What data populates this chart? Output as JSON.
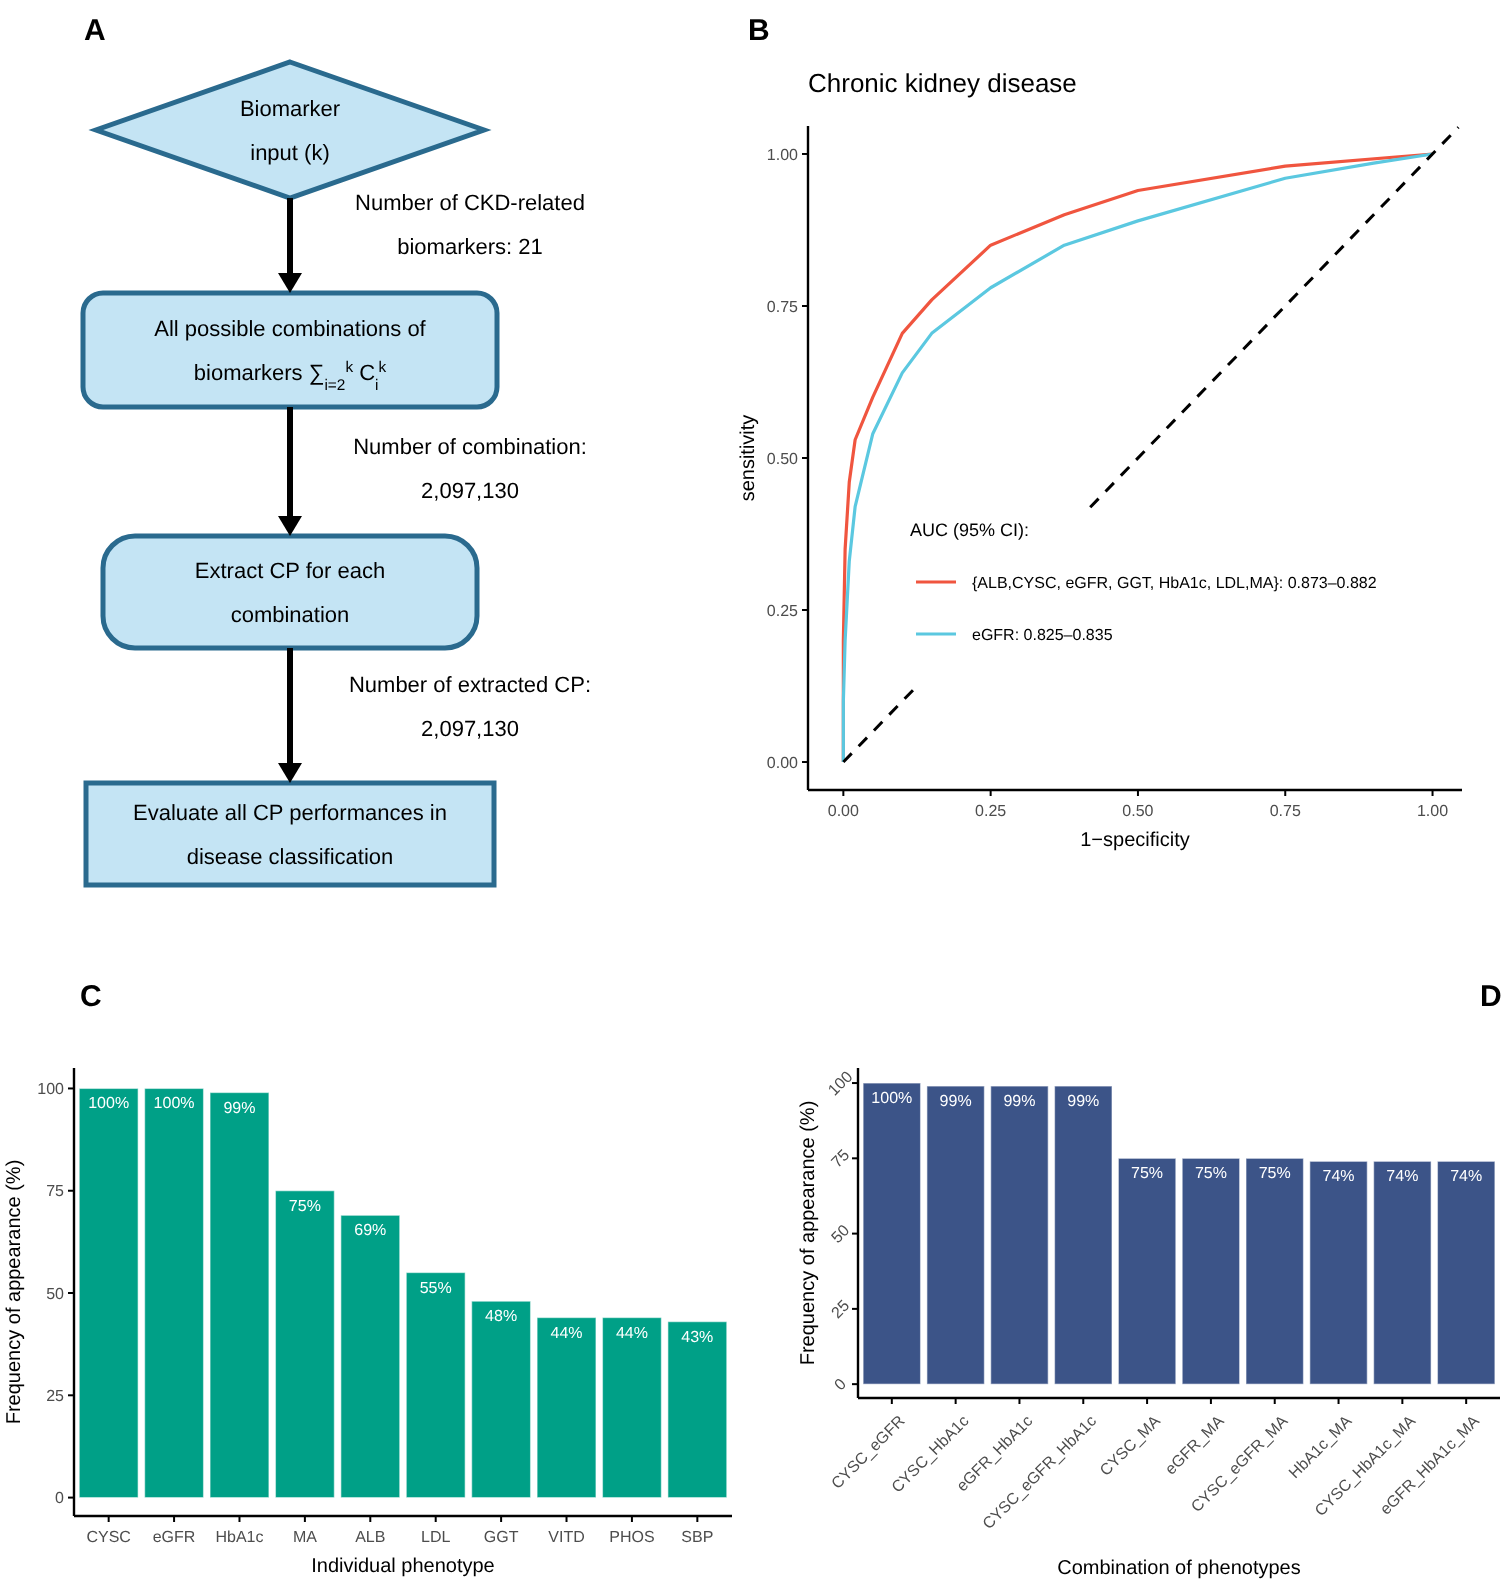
{
  "chart_data": [
    {
      "type": "other",
      "annotations": [
        "A",
        "Biomarker input (k)",
        "Number of CKD-related biomarkers: 21",
        "All possible combinations of biomarkers ∑$_{i=2}$$^{k}$ C$_{i}$$^{k}$",
        "Number of combination: 2,097,130",
        "Extract CP for each combination",
        "Number of extracted CP: 2,097,130",
        "Evaluate all CP performances in disease classification"
      ]
    },
    {
      "type": "line",
      "title": "Chronic kidney disease",
      "annotations": [
        "B"
      ],
      "xlabel": "1−specificity",
      "ylabel": "sensitivity",
      "xlim": [
        -0.06,
        1.05
      ],
      "ylim": [
        -0.046,
        1.046
      ],
      "xticks": [
        {
          "value": 0,
          "label": "0.00"
        },
        {
          "value": 0.25,
          "label": "0.25"
        },
        {
          "value": 0.5,
          "label": "0.50"
        },
        {
          "value": 0.75,
          "label": "0.75"
        },
        {
          "value": 1,
          "label": "1.00"
        }
      ],
      "yticks": [
        {
          "value": 0,
          "label": "0.00"
        },
        {
          "value": 0.25,
          "label": "0.25"
        },
        {
          "value": 0.5,
          "label": "0.50"
        },
        {
          "value": 0.75,
          "label": "0.75"
        },
        {
          "value": 1,
          "label": "1.00"
        }
      ],
      "legend": "bottom",
      "legend_title": "AUC (95% CI):",
      "series": [
        {
          "name": "{ALB,CYSC, eGFR, GGT, HbA1c, LDL,MA}: 0.873–0.882",
          "color": "#f0553f",
          "x": [
            0,
            0,
            0.003,
            0.01,
            0.02,
            0.05,
            0.1,
            0.15,
            0.25,
            0.375,
            0.5,
            0.75,
            1
          ],
          "values": [
            0,
            0.2,
            0.35,
            0.46,
            0.53,
            0.6,
            0.705,
            0.76,
            0.85,
            0.9,
            0.94,
            0.98,
            1
          ]
        },
        {
          "name": "eGFR: 0.825–0.835",
          "color": "#5bc8e0",
          "x": [
            0,
            0,
            0.003,
            0.01,
            0.02,
            0.05,
            0.1,
            0.15,
            0.25,
            0.375,
            0.5,
            0.75,
            0.9,
            1
          ],
          "values": [
            0,
            0.1,
            0.2,
            0.33,
            0.42,
            0.54,
            0.64,
            0.705,
            0.78,
            0.85,
            0.89,
            0.96,
            0.985,
            1
          ]
        },
        {
          "color": "#000000",
          "line_style": "dashed",
          "x": [
            0,
            0.127,
            0.2,
            0.419,
            1.044
          ],
          "values": [
            0,
            0.127,
            null,
            0.419,
            1.044
          ]
        }
      ]
    },
    {
      "type": "bar",
      "annotations": [
        "C"
      ],
      "xlabel": "Individual phenotype",
      "ylabel": "Frequency of appearance (%)",
      "categories": [
        "CYSC",
        "eGFR",
        "HbA1c",
        "MA",
        "ALB",
        "LDL",
        "GGT",
        "VITD",
        "PHOS",
        "SBP"
      ],
      "values": [
        100,
        100,
        99,
        75,
        69,
        55,
        48,
        44,
        44,
        43
      ],
      "value_labels": [
        "100%",
        "100%",
        "99%",
        "75%",
        "69%",
        "55%",
        "48%",
        "44%",
        "44%",
        "43%"
      ],
      "color": "#00a087",
      "ylim": [
        -4.5,
        105
      ],
      "yticks": [
        0,
        25,
        50,
        75,
        100
      ]
    },
    {
      "type": "bar",
      "annotations": [
        "D"
      ],
      "xlabel": "Combination of phenotypes",
      "ylabel": "Frequency of appearance (%)",
      "categories": [
        "CYSC_eGFR",
        "CYSC_HbA1c",
        "eGFR_HbA1c",
        "CYSC_eGFR_HbA1c",
        "CYSC_MA",
        "eGFR_MA",
        "CYSC_eGFR_MA",
        "HbA1c_MA",
        "CYSC_HbA1c_MA",
        "eGFR_HbA1c_MA"
      ],
      "values": [
        100,
        99,
        99,
        99,
        75,
        75,
        75,
        74,
        74,
        74
      ],
      "value_labels": [
        "100%",
        "99%",
        "99%",
        "99%",
        "75%",
        "75%",
        "75%",
        "74%",
        "74%",
        "74%"
      ],
      "color": "#3c5488",
      "ylim": [
        -4.6,
        105
      ],
      "yticks": [
        0,
        25,
        50,
        75,
        100
      ]
    }
  ]
}
